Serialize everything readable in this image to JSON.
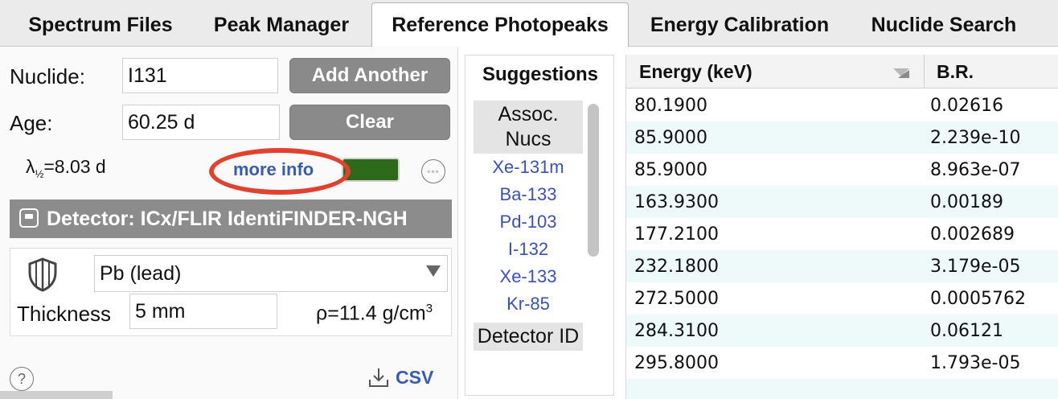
{
  "tabs": [
    {
      "label": "Spectrum Files"
    },
    {
      "label": "Peak Manager"
    },
    {
      "label": "Reference Photopeaks",
      "active": true
    },
    {
      "label": "Energy Calibration"
    },
    {
      "label": "Nuclide Search"
    }
  ],
  "form": {
    "nuclide_label": "Nuclide:",
    "nuclide_value": "I131",
    "age_label": "Age:",
    "age_value": "60.25 d",
    "add_another": "Add Another",
    "clear": "Clear",
    "halflife_prefix": "λ",
    "halflife_sub": "½",
    "halflife_value": "=8.03 d",
    "more_info": "more info",
    "options_glyph": "◦◦◦"
  },
  "detector": {
    "label": "Detector: ICx/FLIR IdentiFINDER-NGH"
  },
  "shielding": {
    "material": "Pb (lead)",
    "thickness_label": "Thickness",
    "thickness_value": "5 mm",
    "density_text": "ρ=11.4 g/cm",
    "density_sup": "3"
  },
  "footer": {
    "help_glyph": "?",
    "csv_label": "CSV"
  },
  "suggestions": {
    "title": "Suggestions",
    "group1": "Assoc. Nucs",
    "items": [
      "Xe-131m",
      "Ba-133",
      "Pd-103",
      "I-132",
      "Xe-133",
      "Kr-85"
    ],
    "group2": "Detector ID"
  },
  "table": {
    "col_energy": "Energy (keV)",
    "col_br": "B.R.",
    "rows": [
      {
        "energy": "80.1900",
        "br": "0.02616"
      },
      {
        "energy": "85.9000",
        "br": "2.239e-10"
      },
      {
        "energy": "85.9000",
        "br": "8.963e-07"
      },
      {
        "energy": "163.9300",
        "br": "0.00189"
      },
      {
        "energy": "177.2100",
        "br": "0.002689"
      },
      {
        "energy": "232.1800",
        "br": "3.179e-05"
      },
      {
        "energy": "272.5000",
        "br": "0.0005762"
      },
      {
        "energy": "284.3100",
        "br": "0.06121"
      },
      {
        "energy": "295.8000",
        "br": "1.793e-05"
      }
    ]
  },
  "colors": {
    "accent_link": "#3a5bb5",
    "highlight_ring": "#e0422f",
    "indicator_green": "#2e6a1b",
    "row_alt": "#eefafa"
  }
}
